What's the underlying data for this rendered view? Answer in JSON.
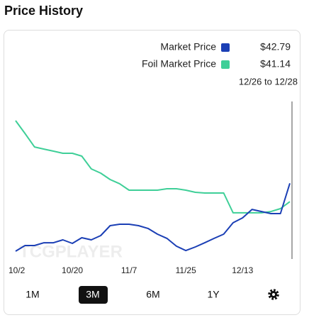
{
  "header": {
    "title": "Price History"
  },
  "chart_data": {
    "type": "line",
    "watermark": "TCGPLAYER",
    "range_label": "12/26 to 12/28",
    "categories": [
      "10/2",
      null,
      null,
      null,
      null,
      null,
      "10/20",
      null,
      null,
      null,
      null,
      null,
      "11/7",
      null,
      null,
      null,
      null,
      null,
      "11/25",
      null,
      null,
      null,
      null,
      null,
      "12/13",
      null,
      null,
      null,
      null,
      null
    ],
    "series": [
      {
        "name": "Market Price",
        "color": "#1b3fb5",
        "price_label": "$42.79",
        "values": [
          36.7,
          37.21,
          37.21,
          37.46,
          37.46,
          37.72,
          37.4,
          37.91,
          37.72,
          38.1,
          38.99,
          39.12,
          39.12,
          38.99,
          38.74,
          38.23,
          37.85,
          37.15,
          36.76,
          37.08,
          37.46,
          37.85,
          38.23,
          39.25,
          39.69,
          40.45,
          40.26,
          40.07,
          40.07,
          42.79
        ]
      },
      {
        "name": "Foil Market Price",
        "color": "#3fcf98",
        "price_label": "$41.14",
        "values": [
          48.41,
          47.26,
          46.05,
          45.86,
          45.67,
          45.48,
          45.48,
          45.23,
          44.08,
          43.7,
          43.13,
          42.75,
          42.17,
          42.17,
          42.17,
          42.17,
          42.3,
          42.3,
          42.17,
          41.98,
          41.92,
          41.92,
          41.92,
          40.14,
          40.14,
          40.14,
          40.14,
          40.26,
          40.52,
          41.14
        ]
      }
    ],
    "ylim": [
      36,
      50
    ]
  },
  "controls": {
    "ranges": [
      "1M",
      "3M",
      "6M",
      "1Y"
    ],
    "selected": 1
  }
}
